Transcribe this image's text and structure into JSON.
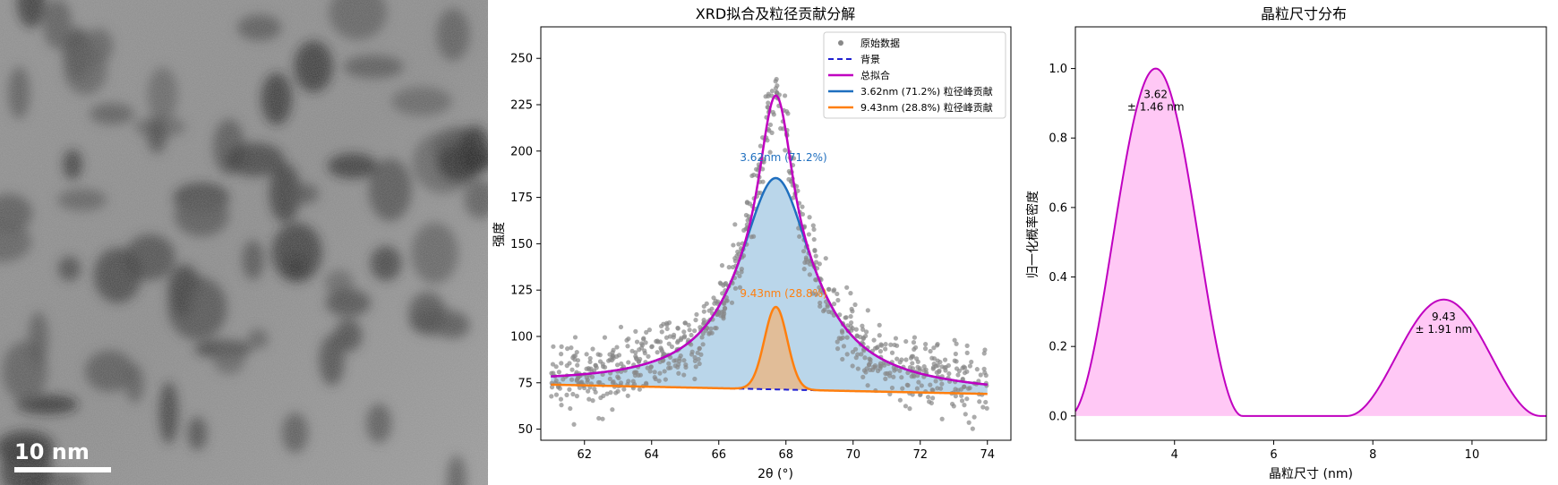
{
  "tem_image": {
    "scale_bar_label": "10 nm",
    "description_colors": {
      "background": "#8a8a8a",
      "dark_particle": "#2a2a2a",
      "scale_bar": "#ffffff"
    }
  },
  "chart_data": [
    {
      "type": "scatter",
      "title": "XRD拟合及粒径贡献分解",
      "xlabel": "2θ (°)",
      "ylabel": "强度",
      "xlim": [
        60.7,
        74.7
      ],
      "ylim": [
        44,
        267
      ],
      "xticks": [
        62,
        64,
        66,
        68,
        70,
        72,
        74
      ],
      "yticks": [
        50,
        75,
        100,
        125,
        150,
        175,
        200,
        225,
        250
      ],
      "grid": false,
      "legend_placement": "top-right",
      "legend": [
        "原始数据",
        "背景",
        "总拟合",
        "3.62nm (71.2%) 粒径峰贡献",
        "9.43nm (28.8%) 粒径峰贡献"
      ],
      "annotations": [
        "3.62nm (71.2%)",
        "9.43nm (28.8%)"
      ],
      "background": {
        "x": [
          61,
          74
        ],
        "y": [
          74,
          69
        ]
      },
      "peak_center": 67.7,
      "component_small_particles": {
        "label": "3.62nm (71.2%) 粒径峰贡献",
        "shape": "lorentzian",
        "amplitude": 114,
        "hwhm": 1.35,
        "peak_y": 185.5
      },
      "component_large_particles": {
        "label": "9.43nm (28.8%) 粒径峰贡献",
        "shape": "gaussian",
        "amplitude": 44.5,
        "sigma": 0.34,
        "peak_y": 116
      },
      "total_fit_peak_y": 231,
      "raw_data_points": 800,
      "raw_data_noise_sd": 9,
      "colors": {
        "raw": "#888888",
        "background": "#1f1fd0",
        "total": "#c000c0",
        "small": "#1f6fbf",
        "large": "#ff7f0e",
        "small_fill": "#aecfe6",
        "large_fill": "#e8b98a"
      }
    },
    {
      "type": "area",
      "title": "晶粒尺寸分布",
      "xlabel": "晶粒尺寸 (nm)",
      "ylabel": "归一化概率密度",
      "xlim": [
        2.0,
        11.5
      ],
      "ylim": [
        -0.07,
        1.12
      ],
      "xticks": [
        4,
        6,
        8,
        10
      ],
      "yticks": [
        0.0,
        0.2,
        0.4,
        0.6,
        0.8,
        1.0
      ],
      "grid": false,
      "peaks": [
        {
          "mean": 3.62,
          "sd": 1.46,
          "height": 1.0,
          "half_width": 1.75,
          "label_line1": "3.62",
          "label_line2": "± 1.46 nm"
        },
        {
          "mean": 9.43,
          "sd": 1.91,
          "height": 0.335,
          "half_width": 1.95,
          "label_line1": "9.43",
          "label_line2": "± 1.91 nm"
        }
      ],
      "colors": {
        "line": "#c000c0",
        "fill": "#ffc8f5"
      }
    }
  ]
}
